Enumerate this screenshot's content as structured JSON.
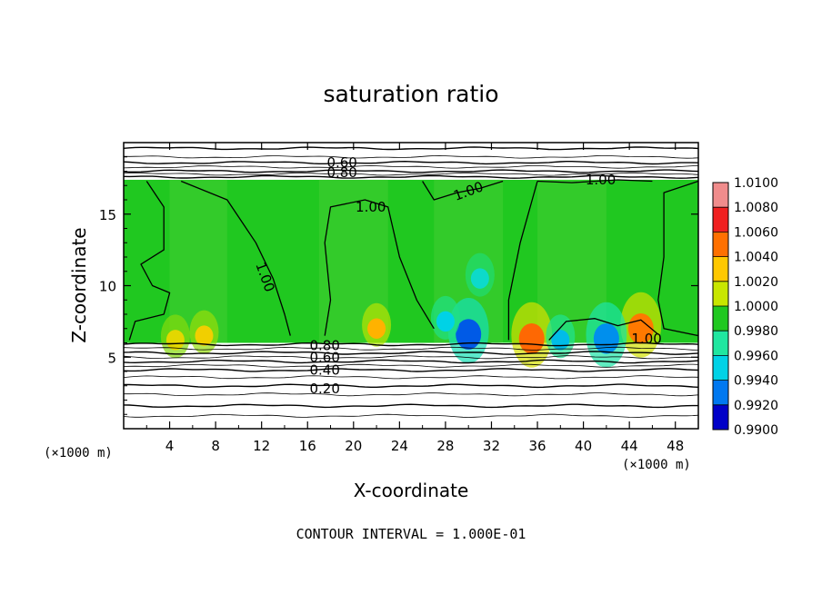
{
  "chart_data": {
    "type": "heatmap",
    "title": "saturation ratio",
    "xlabel": "X-coordinate",
    "ylabel": "Z-coordinate",
    "x_unit": "(×1000 m)",
    "z_unit": "(×1000 m)",
    "xlim": [
      0,
      50
    ],
    "ylim": [
      0,
      20
    ],
    "x_ticks": [
      4,
      8,
      12,
      16,
      20,
      24,
      28,
      32,
      36,
      40,
      44,
      48
    ],
    "y_ticks": [
      5,
      10,
      15
    ],
    "footer": "CONTOUR INTERVAL = 1.000E-01",
    "colorbar": {
      "ticks": [
        "1.0100",
        "1.0080",
        "1.0060",
        "1.0040",
        "1.0020",
        "1.0000",
        "0.9980",
        "0.9960",
        "0.9940",
        "0.9920",
        "0.9900"
      ],
      "colors": [
        "#f08c8c",
        "#f02020",
        "#ff7000",
        "#ffc800",
        "#c8e600",
        "#20c820",
        "#20e6a0",
        "#00d2e6",
        "#0078f0",
        "#0000c8",
        "#6a00a8"
      ]
    },
    "contour_labels": [
      {
        "text": "0.60",
        "x": 19.0,
        "z": 18.6
      },
      {
        "text": "0.80",
        "x": 19.0,
        "z": 17.9
      },
      {
        "text": "1.00",
        "x": 21.5,
        "z": 15.5
      },
      {
        "text": "1.00",
        "x": 30.0,
        "z": 16.6
      },
      {
        "text": "1.00",
        "x": 41.5,
        "z": 17.4
      },
      {
        "text": "1.00",
        "x": 12.3,
        "z": 10.6
      },
      {
        "text": "1.00",
        "x": 45.5,
        "z": 6.3
      },
      {
        "text": "0.80",
        "x": 17.5,
        "z": 5.8
      },
      {
        "text": "0.60",
        "x": 17.5,
        "z": 5.0
      },
      {
        "text": "0.40",
        "x": 17.5,
        "z": 4.1
      },
      {
        "text": "0.20",
        "x": 17.5,
        "z": 2.8
      }
    ],
    "moist_layer": {
      "z_bottom": 6.0,
      "z_top": 17.4,
      "base_value": 1.0
    },
    "anomalies": [
      {
        "x": 35.5,
        "z": 6.3,
        "value": 1.0062
      },
      {
        "x": 45.0,
        "z": 7.0,
        "value": 1.0058
      },
      {
        "x": 22.0,
        "z": 7.0,
        "value": 1.0045
      },
      {
        "x": 7.0,
        "z": 6.5,
        "value": 1.0035
      },
      {
        "x": 4.5,
        "z": 6.2,
        "value": 1.003
      },
      {
        "x": 30.0,
        "z": 6.6,
        "value": 0.9935
      },
      {
        "x": 28.0,
        "z": 7.5,
        "value": 0.996
      },
      {
        "x": 42.0,
        "z": 6.3,
        "value": 0.9945
      },
      {
        "x": 38.0,
        "z": 6.2,
        "value": 0.9955
      },
      {
        "x": 31.0,
        "z": 10.5,
        "value": 0.9968
      }
    ]
  }
}
